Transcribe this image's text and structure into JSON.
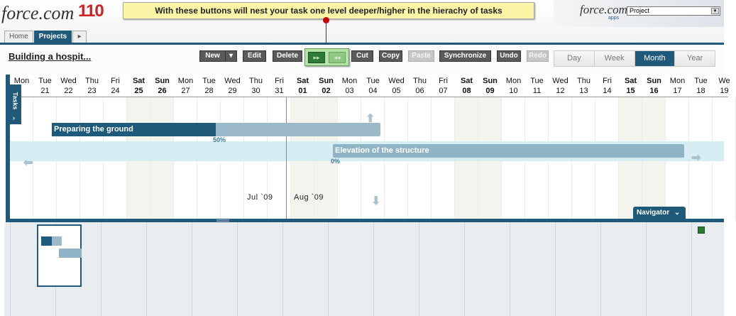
{
  "header": {
    "logo_text": "force.com",
    "logo_number": "110",
    "tabs": [
      "Home",
      "Projects",
      "▸"
    ],
    "callout": "With these buttons will nest your task one level deeper/higher in the hierachy of tasks",
    "apps_logo": "force.com",
    "apps_sub": "apps",
    "project_select": "Project"
  },
  "toolbar": {
    "project_title": "Building a hospit...",
    "buttons": {
      "new": "New",
      "new_dropdown": "▾",
      "edit": "Edit",
      "delete": "Delete",
      "indent": "▸▸",
      "outdent": "◂◂",
      "cut": "Cut",
      "copy": "Copy",
      "paste": "Paste",
      "synchronize": "Synchronize",
      "undo": "Undo",
      "redo": "Redo"
    },
    "views": [
      "Day",
      "Week",
      "Month",
      "Year"
    ],
    "active_view": "Month"
  },
  "gantt": {
    "days": [
      {
        "name": "Mon",
        "num": ""
      },
      {
        "name": "Tue",
        "num": "21"
      },
      {
        "name": "Wed",
        "num": "22"
      },
      {
        "name": "Thu",
        "num": "23"
      },
      {
        "name": "Fri",
        "num": "24"
      },
      {
        "name": "Sat",
        "num": "25"
      },
      {
        "name": "Sun",
        "num": "26"
      },
      {
        "name": "Mon",
        "num": "27"
      },
      {
        "name": "Tue",
        "num": "28"
      },
      {
        "name": "Wed",
        "num": "29"
      },
      {
        "name": "Thu",
        "num": "30"
      },
      {
        "name": "Fri",
        "num": "31"
      },
      {
        "name": "Sat",
        "num": "01"
      },
      {
        "name": "Sun",
        "num": "02"
      },
      {
        "name": "Mon",
        "num": "03"
      },
      {
        "name": "Tue",
        "num": "04"
      },
      {
        "name": "Wed",
        "num": "05"
      },
      {
        "name": "Thu",
        "num": "06"
      },
      {
        "name": "Fri",
        "num": "07"
      },
      {
        "name": "Sat",
        "num": "08"
      },
      {
        "name": "Sun",
        "num": "09"
      },
      {
        "name": "Mon",
        "num": "10"
      },
      {
        "name": "Tue",
        "num": "11"
      },
      {
        "name": "Wed",
        "num": "12"
      },
      {
        "name": "Thu",
        "num": "13"
      },
      {
        "name": "Fri",
        "num": "14"
      },
      {
        "name": "Sat",
        "num": "15"
      },
      {
        "name": "Sun",
        "num": "16"
      },
      {
        "name": "Mon",
        "num": "17"
      },
      {
        "name": "Tue",
        "num": "18"
      },
      {
        "name": "We",
        "num": "19"
      }
    ],
    "tasks_tab": "Tasks",
    "tasks_tab_arrow": "›",
    "task1": {
      "name": "Preparing the ground",
      "progress": "50%"
    },
    "task2": {
      "name": "Elevation of the structure",
      "progress": "0%"
    },
    "month_labels": [
      "Jul `09",
      "Aug `09"
    ],
    "navigator_tab": "Navigator",
    "navigator_arrow": "⌄",
    "arrows": {
      "up": "⬆",
      "down": "⬇",
      "left": "⬅",
      "right": "➡"
    }
  },
  "colors": {
    "brand": "#1f5a7a",
    "callout": "#fbf5a8",
    "highlight_row": "#d6edf4",
    "nest_group": "#b5e2a8"
  }
}
